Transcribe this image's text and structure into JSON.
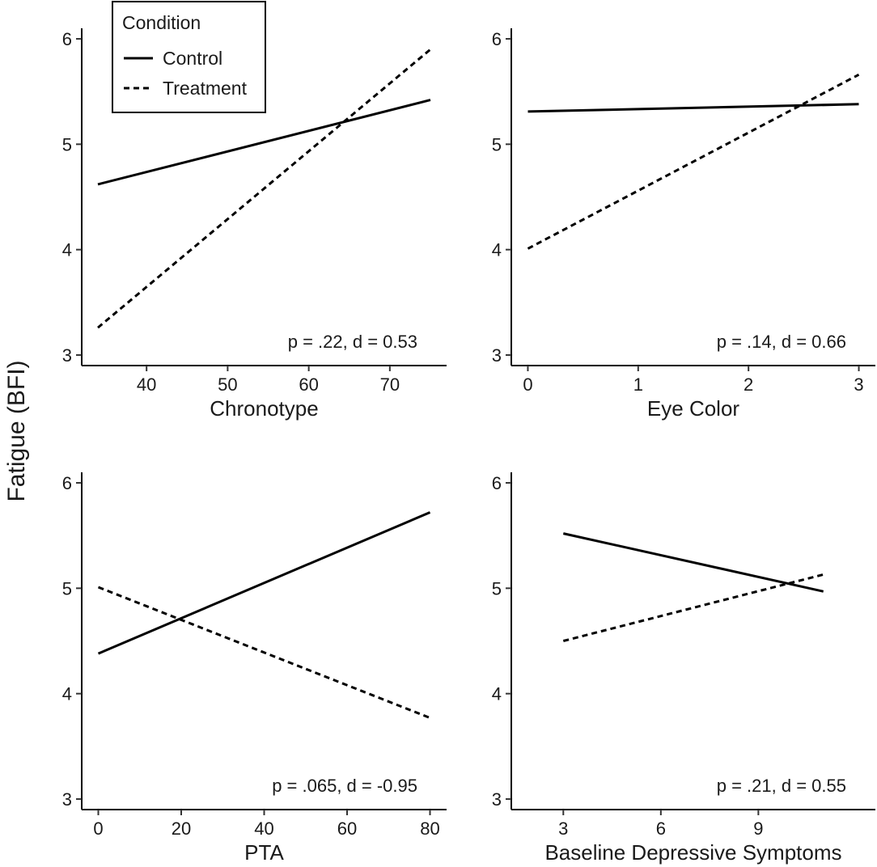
{
  "chart_data": {
    "type": "line",
    "ylabel": "Fatigue (BFI)",
    "legend": {
      "title": "Condition",
      "position": "top-left",
      "entries": [
        {
          "name": "Control",
          "style": "solid"
        },
        {
          "name": "Treatment",
          "style": "dashed"
        }
      ]
    },
    "panels": [
      {
        "xlabel": "Chronotype",
        "xlim": [
          32,
          77
        ],
        "xticks": [
          40,
          50,
          60,
          70
        ],
        "ylim": [
          2.9,
          6.1
        ],
        "yticks": [
          3,
          4,
          5,
          6
        ],
        "annotation": "p = .22, d = 0.53",
        "series": [
          {
            "name": "Control",
            "x": [
              34,
              75
            ],
            "y": [
              4.62,
              5.42
            ]
          },
          {
            "name": "Treatment",
            "x": [
              34,
              75
            ],
            "y": [
              3.26,
              5.9
            ]
          }
        ]
      },
      {
        "xlabel": "Eye Color",
        "xlim": [
          -0.15,
          3.15
        ],
        "xticks": [
          0,
          1,
          2,
          3
        ],
        "ylim": [
          2.9,
          6.1
        ],
        "yticks": [
          3,
          4,
          5,
          6
        ],
        "annotation": "p = .14, d = 0.66",
        "series": [
          {
            "name": "Control",
            "x": [
              0,
              3
            ],
            "y": [
              5.31,
              5.38
            ]
          },
          {
            "name": "Treatment",
            "x": [
              0,
              3
            ],
            "y": [
              4.01,
              5.66
            ]
          }
        ]
      },
      {
        "xlabel": "PTA",
        "xlim": [
          -4,
          84
        ],
        "xticks": [
          0,
          20,
          40,
          60,
          80
        ],
        "ylim": [
          2.9,
          6.1
        ],
        "yticks": [
          3,
          4,
          5,
          6
        ],
        "annotation": "p = .065, d = -0.95",
        "series": [
          {
            "name": "Control",
            "x": [
              0,
              80
            ],
            "y": [
              4.38,
              5.72
            ]
          },
          {
            "name": "Treatment",
            "x": [
              0,
              80
            ],
            "y": [
              5.01,
              3.77
            ]
          }
        ]
      },
      {
        "xlabel": "Baseline Depressive Symptoms",
        "xlim": [
          1.4,
          12.6
        ],
        "xticks": [
          3,
          6,
          9
        ],
        "ylim": [
          2.9,
          6.1
        ],
        "yticks": [
          3,
          4,
          5,
          6
        ],
        "annotation": "p = .21, d = 0.55",
        "series": [
          {
            "name": "Control",
            "x": [
              3,
              11
            ],
            "y": [
              5.52,
              4.97
            ]
          },
          {
            "name": "Treatment",
            "x": [
              3,
              11
            ],
            "y": [
              4.5,
              5.13
            ]
          }
        ]
      }
    ]
  }
}
